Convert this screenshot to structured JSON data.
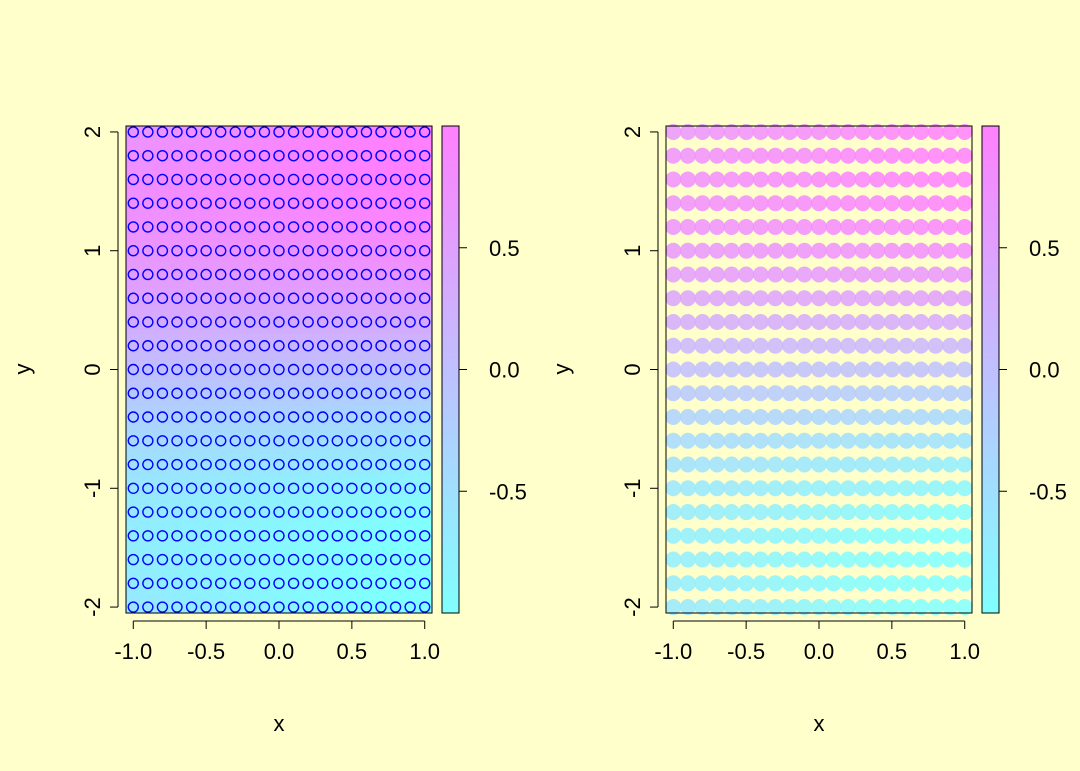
{
  "chart_data": [
    {
      "type": "scatter",
      "panel": "left",
      "description_marker": "open circles over continuous colored surface",
      "xlabel": "x",
      "ylabel": "y",
      "xlim": [
        -1.05,
        1.05
      ],
      "ylim": [
        -2.05,
        2.05
      ],
      "x_ticks": [
        -1.0,
        -0.5,
        0.0,
        0.5,
        1.0
      ],
      "x_tick_labels": [
        "-1.0",
        "-0.5",
        "0.0",
        "0.5",
        "1.0"
      ],
      "y_ticks": [
        -2,
        -1,
        0,
        1,
        2
      ],
      "y_tick_labels": [
        "-2",
        "-1",
        "0",
        "1",
        "2"
      ],
      "grid": false,
      "points": {
        "x_from": -1.0,
        "x_to": 1.0,
        "x_count": 21,
        "y_from": -2.0,
        "y_to": 2.0,
        "y_count": 21
      },
      "point_color": "#0000FF",
      "colorbar": {
        "range": [
          -1,
          1
        ],
        "ticks": [
          -0.5,
          0.0,
          0.5
        ],
        "tick_labels": [
          "-0.5",
          "0.0",
          "0.5"
        ],
        "low_color": "#80FFFF",
        "high_color": "#FF80FF"
      }
    },
    {
      "type": "scatter",
      "panel": "right",
      "xlabel": "x",
      "ylabel": "y",
      "xlim": [
        -1.05,
        1.05
      ],
      "ylim": [
        -2.05,
        2.05
      ],
      "x_ticks": [
        -1.0,
        -0.5,
        0.0,
        0.5,
        1.0
      ],
      "x_tick_labels": [
        "-1.0",
        "-0.5",
        "0.0",
        "0.5",
        "1.0"
      ],
      "y_ticks": [
        -2,
        -1,
        0,
        1,
        2
      ],
      "y_tick_labels": [
        "-2",
        "-1",
        "0",
        "1",
        "2"
      ],
      "grid": false,
      "points": {
        "x_from": -1.0,
        "x_to": 1.0,
        "x_count": 21,
        "y_from": -2.0,
        "y_to": 2.0,
        "y_count": 21
      },
      "colorbar": {
        "range": [
          -1,
          1
        ],
        "ticks": [
          -0.5,
          0.0,
          0.5
        ],
        "tick_labels": [
          "-0.5",
          "0.0",
          "0.5"
        ],
        "low_color": "#80FFFF",
        "high_color": "#FF80FF"
      }
    }
  ],
  "colors": {
    "background": "#FFFFCC",
    "point_outline": "#0000FF",
    "colorbar_low": "#80FFFF",
    "colorbar_high": "#FF80FF"
  }
}
